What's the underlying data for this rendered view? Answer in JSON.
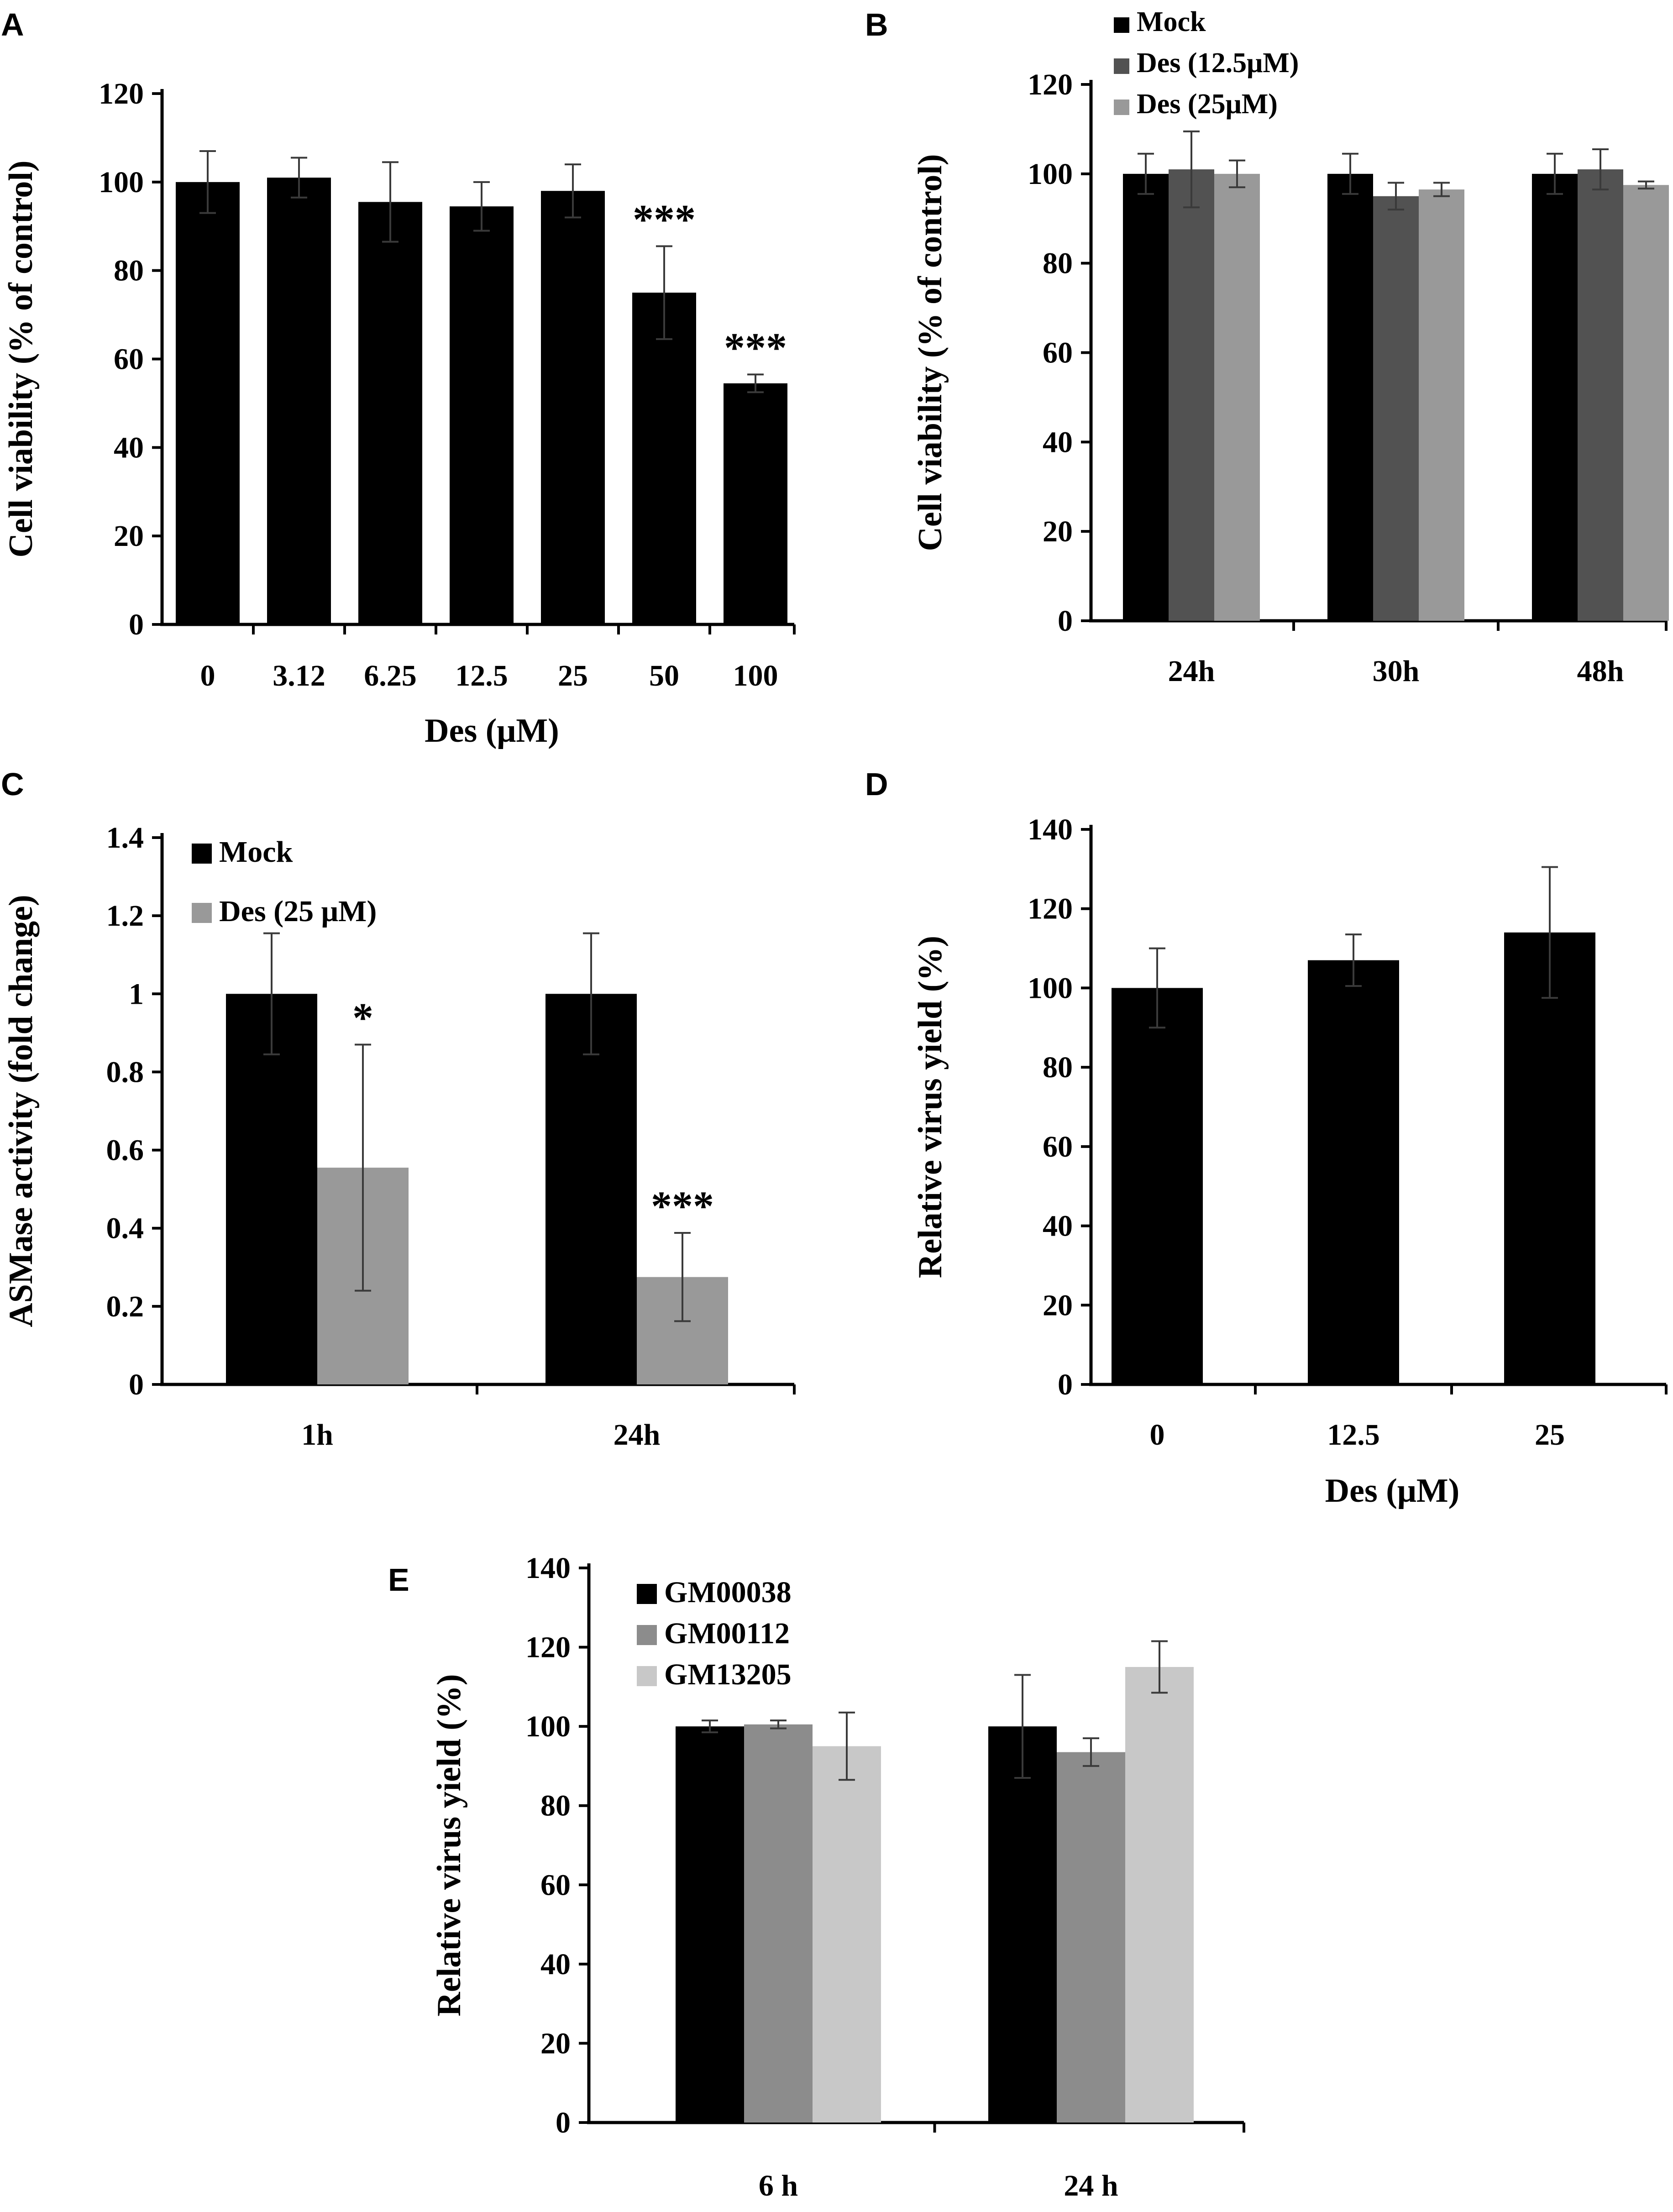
{
  "figure": {
    "panels": [
      "A",
      "B",
      "C",
      "D",
      "E"
    ]
  },
  "colors": {
    "black": "#000000",
    "dark_gray": "#525252",
    "mid_gray": "#8c8c8c",
    "light_gray": "#999999",
    "pale_gray": "#c8c8c8",
    "axis": "#000000",
    "error_bar": "#3a3a3a"
  },
  "chart_data": [
    {
      "panel": "A",
      "type": "bar",
      "title": "",
      "xlabel": "Des (μM)",
      "ylabel": "Cell viability (% of control)",
      "ylim": [
        0,
        120
      ],
      "yticks": [
        0,
        20,
        40,
        60,
        80,
        100,
        120
      ],
      "categories": [
        "0",
        "3.12",
        "6.25",
        "12.5",
        "25",
        "50",
        "100"
      ],
      "series": [
        {
          "name": "",
          "color": "#000000",
          "values": [
            100,
            101,
            95.5,
            94.5,
            98,
            75,
            54.5
          ],
          "errors": [
            7,
            4.5,
            9,
            5.5,
            6,
            10.5,
            2
          ]
        }
      ],
      "annotations": [
        {
          "category_index": 5,
          "series_index": 0,
          "text": "***"
        },
        {
          "category_index": 6,
          "series_index": 0,
          "text": "***"
        }
      ],
      "legend": null
    },
    {
      "panel": "B",
      "type": "bar",
      "title": "",
      "xlabel": "",
      "ylabel": "Cell viability (% of control)",
      "ylim": [
        0,
        120
      ],
      "yticks": [
        0,
        20,
        40,
        60,
        80,
        100,
        120
      ],
      "categories": [
        "24h",
        "30h",
        "48h"
      ],
      "series": [
        {
          "name": "Mock",
          "color": "#000000",
          "values": [
            100,
            100,
            100
          ],
          "errors": [
            4.5,
            4.5,
            4.5
          ]
        },
        {
          "name": "Des (12.5μM)",
          "color": "#525252",
          "values": [
            101,
            95,
            101
          ],
          "errors": [
            8.5,
            3,
            4.5
          ]
        },
        {
          "name": "Des (25μM)",
          "color": "#999999",
          "values": [
            100,
            96.5,
            97.5
          ],
          "errors": [
            3,
            1.5,
            0.8
          ]
        }
      ],
      "annotations": [],
      "legend": "top-left"
    },
    {
      "panel": "C",
      "type": "bar",
      "title": "",
      "xlabel": "",
      "ylabel": "ASMase activity (fold change)",
      "ylim": [
        0,
        1.4
      ],
      "yticks": [
        "0",
        "0.2",
        "0.4",
        "0.6",
        "0.8",
        "1",
        "1.2",
        "1.4"
      ],
      "ytick_values": [
        0,
        0.2,
        0.4,
        0.6,
        0.8,
        1,
        1.2,
        1.4
      ],
      "categories": [
        "1h",
        "24h"
      ],
      "series": [
        {
          "name": "Mock",
          "color": "#000000",
          "values": [
            1,
            1
          ],
          "errors": [
            0.155,
            0.155
          ]
        },
        {
          "name": "Des (25 μM)",
          "color": "#999999",
          "values": [
            0.555,
            0.275
          ],
          "errors": [
            0.315,
            0.113
          ]
        }
      ],
      "annotations": [
        {
          "category_index": 0,
          "series_index": 1,
          "text": "*"
        },
        {
          "category_index": 1,
          "series_index": 1,
          "text": "***"
        }
      ],
      "legend": "top-left"
    },
    {
      "panel": "D",
      "type": "bar",
      "title": "",
      "xlabel": "Des (μM)",
      "ylabel": "Relative virus yield (%)",
      "ylim": [
        0,
        140
      ],
      "yticks": [
        0,
        20,
        40,
        60,
        80,
        100,
        120,
        140
      ],
      "categories": [
        "0",
        "12.5",
        "25"
      ],
      "series": [
        {
          "name": "",
          "color": "#000000",
          "values": [
            100,
            107,
            114
          ],
          "errors": [
            10,
            6.5,
            16.5
          ]
        }
      ],
      "annotations": [],
      "legend": null
    },
    {
      "panel": "E",
      "type": "bar",
      "title": "",
      "xlabel": "",
      "ylabel": "Relative virus yield (%)",
      "ylim": [
        0,
        140
      ],
      "yticks": [
        0,
        20,
        40,
        60,
        80,
        100,
        120,
        140
      ],
      "categories": [
        "6 h",
        "24 h"
      ],
      "series": [
        {
          "name": "GM00038",
          "color": "#000000",
          "values": [
            100,
            100
          ],
          "errors": [
            1.5,
            13
          ]
        },
        {
          "name": "GM00112",
          "color": "#8c8c8c",
          "values": [
            100.5,
            93.5
          ],
          "errors": [
            1,
            3.5
          ]
        },
        {
          "name": "GM13205",
          "color": "#c8c8c8",
          "values": [
            95,
            115
          ],
          "errors": [
            8.5,
            6.5
          ]
        }
      ],
      "annotations": [],
      "legend": "top-left"
    }
  ]
}
